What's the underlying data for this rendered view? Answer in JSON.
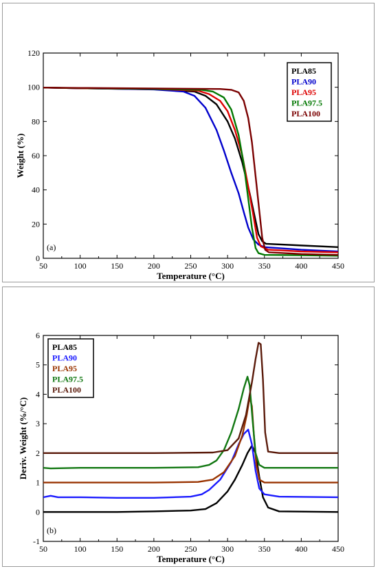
{
  "chart_data": [
    {
      "id": "a",
      "type": "line",
      "panel_label": "(a)",
      "xlabel": "Temperature (°C)",
      "ylabel": "Weight (%)",
      "xlim": [
        50,
        450
      ],
      "ylim": [
        0,
        120
      ],
      "xticks": [
        50,
        100,
        150,
        200,
        250,
        300,
        350,
        400,
        450
      ],
      "yticks": [
        0,
        20,
        40,
        60,
        80,
        100,
        120
      ],
      "legend_position": "top-right",
      "series": [
        {
          "name": "PLA85",
          "color": "#000000",
          "x": [
            50,
            100,
            200,
            255,
            270,
            285,
            300,
            310,
            320,
            330,
            337,
            342,
            347,
            352,
            400,
            450
          ],
          "y": [
            99.8,
            99.4,
            98.8,
            97.5,
            95.0,
            90.0,
            80.0,
            70.0,
            56.0,
            38.0,
            24.0,
            14.0,
            10.0,
            8.5,
            7.5,
            6.5
          ]
        },
        {
          "name": "PLA90",
          "color": "#0000cc",
          "x": [
            50,
            100,
            200,
            240,
            255,
            270,
            285,
            295,
            305,
            315,
            322,
            328,
            335,
            342,
            350,
            400,
            450
          ],
          "y": [
            99.8,
            99.4,
            98.7,
            97.5,
            95.0,
            88.0,
            75.0,
            63.0,
            50.0,
            38.0,
            27.0,
            18.0,
            11.0,
            8.0,
            6.5,
            5.0,
            4.0
          ]
        },
        {
          "name": "PLA95",
          "color": "#dd0000",
          "x": [
            50,
            100,
            200,
            260,
            275,
            290,
            300,
            310,
            320,
            328,
            335,
            340,
            345,
            355,
            400,
            450
          ],
          "y": [
            99.8,
            99.4,
            99.0,
            98.0,
            96.0,
            92.0,
            86.0,
            75.0,
            60.0,
            42.0,
            25.0,
            12.0,
            7.0,
            5.0,
            4.0,
            3.5
          ]
        },
        {
          "name": "PLA97.5",
          "color": "#007700",
          "x": [
            50,
            100,
            200,
            265,
            280,
            295,
            305,
            315,
            322,
            328,
            333,
            338,
            342,
            350,
            400,
            450
          ],
          "y": [
            99.8,
            99.5,
            99.0,
            98.5,
            97.5,
            94.0,
            87.0,
            72.0,
            55.0,
            35.0,
            18.0,
            6.0,
            3.0,
            2.0,
            1.8,
            1.5
          ]
        },
        {
          "name": "PLA100",
          "color": "#7a0000",
          "x": [
            50,
            100,
            200,
            290,
            305,
            315,
            322,
            328,
            333,
            338,
            343,
            347,
            351,
            356,
            400,
            450
          ],
          "y": [
            99.8,
            99.6,
            99.3,
            99.0,
            98.5,
            97.0,
            92.0,
            82.0,
            68.0,
            48.0,
            28.0,
            12.0,
            5.0,
            3.5,
            2.5,
            2.0
          ]
        }
      ]
    },
    {
      "id": "b",
      "type": "line",
      "panel_label": "(b)",
      "xlabel": "Temperature (°C)",
      "ylabel": "Deriv. Weight (%/°C)",
      "xlim": [
        50,
        450
      ],
      "ylim": [
        -1,
        6
      ],
      "xticks": [
        50,
        100,
        150,
        200,
        250,
        300,
        350,
        400,
        450
      ],
      "yticks": [
        -1,
        0,
        1,
        2,
        3,
        4,
        5,
        6
      ],
      "legend_position": "top-left",
      "series": [
        {
          "name": "PLA85",
          "color": "#000000",
          "x": [
            50,
            100,
            150,
            200,
            250,
            270,
            285,
            300,
            310,
            320,
            327,
            333,
            338,
            343,
            348,
            355,
            370,
            450
          ],
          "y": [
            0.0,
            0.0,
            0.0,
            0.02,
            0.05,
            0.1,
            0.3,
            0.7,
            1.1,
            1.6,
            2.0,
            2.25,
            2.0,
            1.2,
            0.5,
            0.15,
            0.02,
            0.0
          ]
        },
        {
          "name": "PLA90",
          "color": "#1a1aff",
          "x": [
            50,
            60,
            70,
            100,
            150,
            200,
            250,
            265,
            275,
            290,
            305,
            315,
            322,
            328,
            333,
            338,
            343,
            350,
            370,
            450
          ],
          "y": [
            0.5,
            0.55,
            0.5,
            0.5,
            0.48,
            0.48,
            0.52,
            0.6,
            0.75,
            1.1,
            1.7,
            2.3,
            2.65,
            2.8,
            2.3,
            1.4,
            0.8,
            0.6,
            0.52,
            0.5
          ]
        },
        {
          "name": "PLA95",
          "color": "#993300",
          "x": [
            50,
            100,
            200,
            260,
            280,
            295,
            310,
            320,
            326,
            330,
            333,
            336,
            339,
            343,
            350,
            370,
            450
          ],
          "y": [
            1.0,
            1.0,
            1.0,
            1.02,
            1.1,
            1.35,
            1.9,
            2.6,
            3.3,
            3.9,
            3.6,
            2.5,
            1.6,
            1.1,
            1.0,
            1.0,
            1.0
          ]
        },
        {
          "name": "PLA97.5",
          "color": "#117711",
          "x": [
            50,
            60,
            100,
            200,
            260,
            275,
            285,
            295,
            305,
            315,
            322,
            327,
            330,
            334,
            338,
            343,
            350,
            370,
            450
          ],
          "y": [
            1.5,
            1.48,
            1.5,
            1.5,
            1.52,
            1.6,
            1.75,
            2.1,
            2.7,
            3.5,
            4.2,
            4.6,
            4.3,
            3.1,
            2.0,
            1.6,
            1.5,
            1.5,
            1.5
          ]
        },
        {
          "name": "PLA100",
          "color": "#5a1a0a",
          "x": [
            50,
            100,
            200,
            280,
            300,
            315,
            325,
            333,
            338,
            342,
            345,
            348,
            351,
            355,
            370,
            450
          ],
          "y": [
            2.0,
            2.0,
            2.0,
            2.02,
            2.1,
            2.5,
            3.3,
            4.4,
            5.2,
            5.75,
            5.7,
            4.5,
            2.7,
            2.05,
            2.0,
            2.0
          ]
        }
      ]
    }
  ]
}
